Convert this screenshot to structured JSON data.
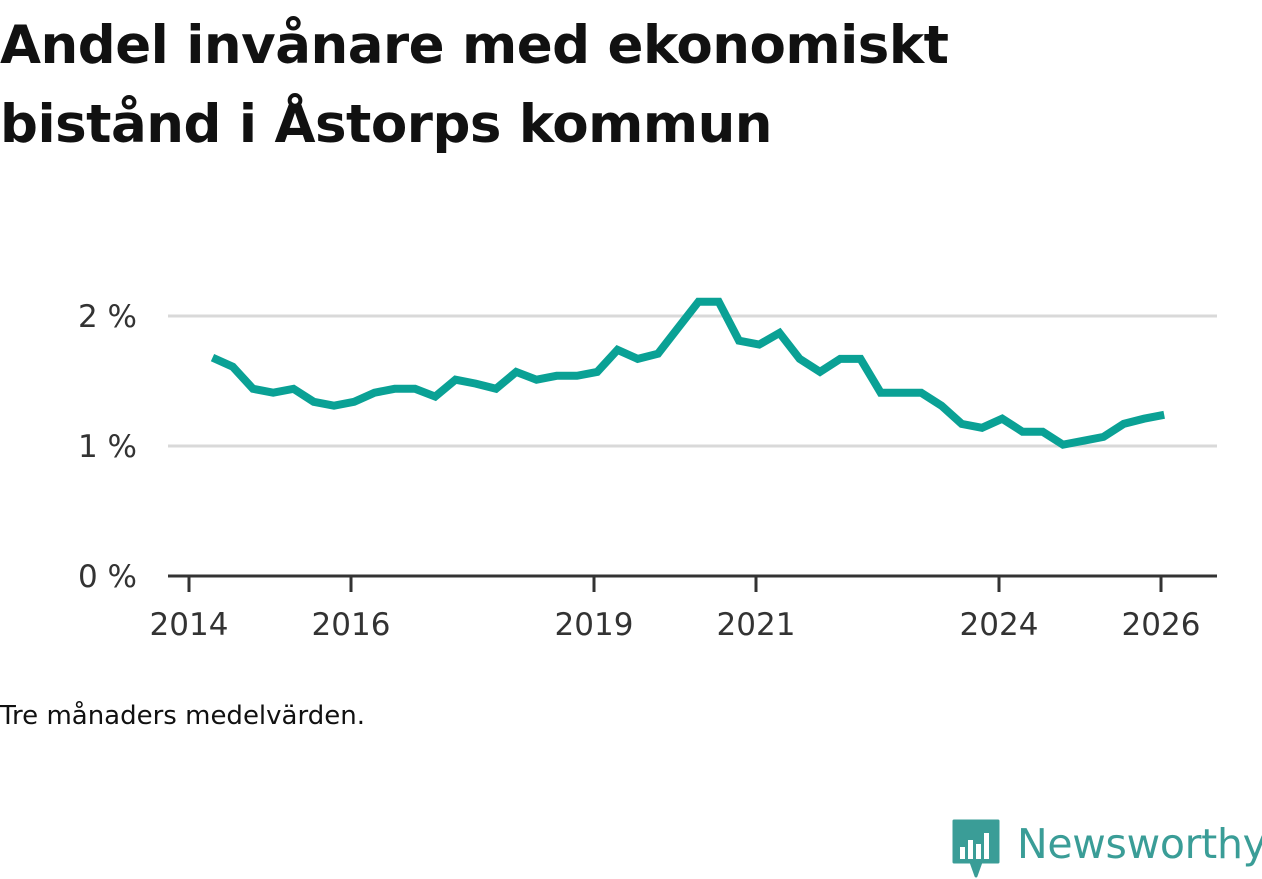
{
  "title": "Andel invånare med ekonomiskt bistånd i Åstorps kommun",
  "note": "Tre månaders medelvärden.",
  "brand": {
    "name": "Newsworthy",
    "icon": "newsworthy-logo-icon",
    "color": "#3a9d97"
  },
  "colors": {
    "line": "#0aa195",
    "grid": "#d9d9d9",
    "axis": "#333333"
  },
  "chart_data": {
    "type": "line",
    "title": "Andel invånare med ekonomiskt bistånd i Åstorps kommun",
    "xlabel": "",
    "ylabel": "",
    "xlim": [
      2014,
      2026.35
    ],
    "ylim": [
      0,
      2
    ],
    "grid": true,
    "yticks": [
      0,
      1,
      2
    ],
    "ytick_labels": [
      "0 %",
      "1 %",
      "2 %"
    ],
    "xticks": [
      2014,
      2016,
      2019,
      2021,
      2024,
      2026
    ],
    "xtick_labels": [
      "2014",
      "2016",
      "2019",
      "2021",
      "2024",
      "2026"
    ],
    "series": [
      {
        "name": "Andel invånare med ekonomiskt bistånd",
        "x": [
          2014.29,
          2014.54,
          2014.79,
          2015.04,
          2015.29,
          2015.54,
          2015.79,
          2016.04,
          2016.29,
          2016.54,
          2016.79,
          2017.04,
          2017.29,
          2017.54,
          2017.79,
          2018.04,
          2018.29,
          2018.54,
          2018.79,
          2019.04,
          2019.29,
          2019.54,
          2019.79,
          2020.04,
          2020.29,
          2020.54,
          2020.79,
          2021.04,
          2021.29,
          2021.54,
          2021.79,
          2022.04,
          2022.29,
          2022.54,
          2022.79,
          2023.04,
          2023.29,
          2023.54,
          2023.79,
          2024.04,
          2024.29,
          2024.54,
          2024.79,
          2025.04,
          2025.29,
          2025.54,
          2025.79,
          2026.04
        ],
        "values": [
          1.68,
          1.61,
          1.44,
          1.41,
          1.44,
          1.34,
          1.31,
          1.34,
          1.41,
          1.44,
          1.44,
          1.38,
          1.51,
          1.48,
          1.44,
          1.57,
          1.51,
          1.54,
          1.54,
          1.57,
          1.74,
          1.67,
          1.71,
          1.91,
          2.11,
          2.11,
          1.81,
          1.78,
          1.87,
          1.67,
          1.57,
          1.67,
          1.67,
          1.41,
          1.41,
          1.41,
          1.31,
          1.17,
          1.14,
          1.21,
          1.11,
          1.11,
          1.01,
          1.04,
          1.07,
          1.17,
          1.21,
          1.24
        ]
      }
    ]
  }
}
